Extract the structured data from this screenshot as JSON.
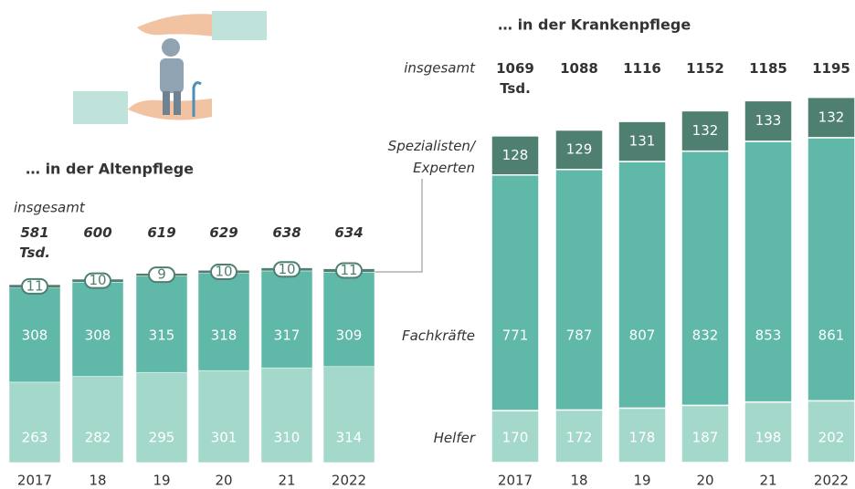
{
  "chart_data": [
    {
      "type": "bar",
      "stacked": true,
      "title": "… in der Altenpflege",
      "categories": [
        "2017",
        "18",
        "19",
        "20",
        "21",
        "2022"
      ],
      "series": [
        {
          "color": "#a3d8cb",
          "values": [
            263,
            282,
            295,
            301,
            310,
            314
          ]
        },
        {
          "color": "#5fb8a8",
          "values": [
            308,
            308,
            315,
            318,
            317,
            309
          ]
        },
        {
          "color": "#4e7f70",
          "values": [
            11,
            10,
            9,
            10,
            10,
            11
          ]
        }
      ],
      "totals": {
        "name": "insgesamt",
        "values": [
          581,
          600,
          619,
          629,
          638,
          634
        ],
        "value_labels": [
          "581 Tsd.",
          "600",
          "619",
          "629",
          "638",
          "634"
        ]
      }
    },
    {
      "type": "bar",
      "stacked": true,
      "title": "… in der Krankenpflege",
      "categories": [
        "2017",
        "18",
        "19",
        "20",
        "21",
        "2022"
      ],
      "series": [
        {
          "name": "Helfer",
          "color": "#a3d8cb",
          "values": [
            170,
            172,
            178,
            187,
            198,
            202
          ]
        },
        {
          "name": "Fachkräfte",
          "color": "#5fb8a8",
          "values": [
            771,
            787,
            807,
            832,
            853,
            861
          ]
        },
        {
          "name": "Spezialisten/ Experten",
          "color": "#4e7f70",
          "values": [
            128,
            129,
            131,
            132,
            133,
            132
          ]
        }
      ],
      "totals": {
        "name": "insgesamt",
        "values": [
          1069,
          1088,
          1116,
          1152,
          1185,
          1195
        ],
        "value_labels": [
          "1069 Tsd.",
          "1088",
          "1116",
          "1152",
          "1185",
          "1195"
        ]
      }
    }
  ]
}
